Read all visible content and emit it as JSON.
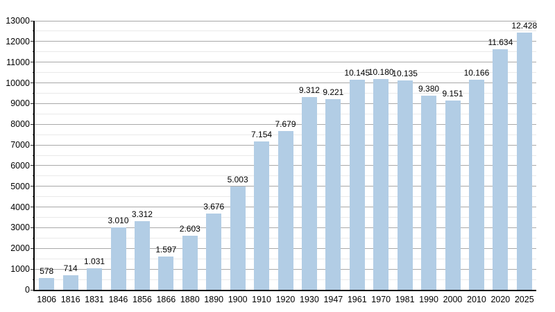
{
  "chart_data": {
    "type": "bar",
    "title": "",
    "xlabel": "",
    "ylabel": "",
    "legend": "none",
    "grid": "on",
    "ylim": [
      0,
      13000
    ],
    "y_major_step": 1000,
    "y_minor_step": 500,
    "y_tick_labels": [
      "0",
      "1000",
      "2000",
      "3000",
      "4000",
      "5000",
      "6000",
      "7000",
      "8000",
      "9000",
      "10000",
      "11000",
      "12000",
      "13000"
    ],
    "categories": [
      "1806",
      "1816",
      "1831",
      "1846",
      "1856",
      "1866",
      "1880",
      "1890",
      "1900",
      "1910",
      "1920",
      "1930",
      "1947",
      "1961",
      "1970",
      "1981",
      "1990",
      "2000",
      "2010",
      "2020",
      "2025"
    ],
    "values": [
      578,
      714,
      1031,
      3010,
      3312,
      1597,
      2603,
      3676,
      5003,
      7154,
      7679,
      9312,
      9221,
      10145,
      10180,
      10135,
      9380,
      9151,
      10166,
      11634,
      12428
    ],
    "value_labels": [
      "578",
      "714",
      "1.031",
      "3.010",
      "3.312",
      "1.597",
      "2.603",
      "3.676",
      "5.003",
      "7.154",
      "7.679",
      "9.312",
      "9.221",
      "10.145",
      "10.180",
      "10.135",
      "9.380",
      "9.151",
      "10.166",
      "11.634",
      "12.428"
    ],
    "bar_color": "#b2cde5",
    "axis_color": "#000000",
    "major_grid_color": "#a8a8a8",
    "minor_grid_color": "#e9e9e9",
    "label_color": "#000000"
  }
}
